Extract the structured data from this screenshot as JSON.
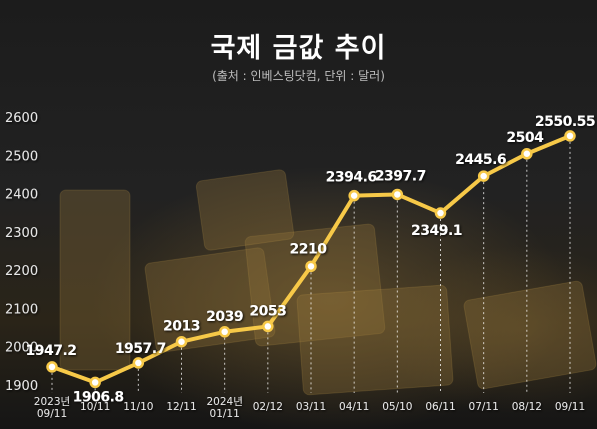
{
  "chart_data": {
    "type": "line",
    "title": "국제 금값 추이",
    "subtitle": "(출처 : 인베스팅닷컴, 단위 : 달러)",
    "categories": [
      "2023년\n09/11",
      "10/11",
      "11/10",
      "12/11",
      "2024년\n01/11",
      "02/12",
      "03/11",
      "04/11",
      "05/10",
      "06/11",
      "07/11",
      "08/12",
      "09/11"
    ],
    "values": [
      1947.2,
      1906.8,
      1957.7,
      2013,
      2039,
      2053,
      2210,
      2394.6,
      2397.7,
      2349.1,
      2445.6,
      2504,
      2550.55
    ],
    "data_labels": [
      "1947.2",
      "1906.8",
      "1957.7",
      "2013",
      "2039",
      "2053",
      "2210",
      "2394.6",
      "2397.7",
      "2349.1",
      "2445.6",
      "2504",
      "2550.55"
    ],
    "yticks": [
      1900,
      2000,
      2100,
      2200,
      2300,
      2400,
      2500,
      2600
    ],
    "ylim": [
      1900,
      2600
    ],
    "xlabel": "",
    "ylabel": "",
    "grid": false,
    "colors": {
      "line": "#f7c948",
      "marker_fill": "#ffffff",
      "label": "#ffffff",
      "tick": "#e6e6e6"
    }
  }
}
